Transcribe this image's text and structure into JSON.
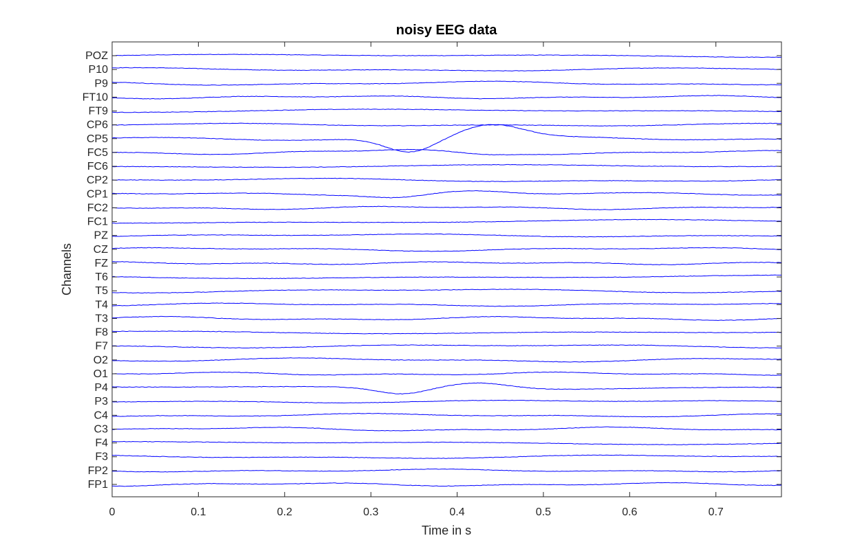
{
  "chart_data": {
    "type": "line",
    "title": "noisy EEG data",
    "xlabel": "Time in s",
    "ylabel": "Channels",
    "xlim": [
      0,
      0.776
    ],
    "xticks": [
      0,
      0.1,
      0.2,
      0.3,
      0.4,
      0.5,
      0.6,
      0.7
    ],
    "xtick_labels": [
      "0",
      "0.1",
      "0.2",
      "0.3",
      "0.4",
      "0.5",
      "0.6",
      "0.7"
    ],
    "channels_top_to_bottom": [
      "POZ",
      "P10",
      "P9",
      "FT10",
      "FT9",
      "CP6",
      "CP5",
      "FC5",
      "FC6",
      "CP2",
      "CP1",
      "FC2",
      "FC1",
      "PZ",
      "CZ",
      "FZ",
      "T6",
      "T5",
      "T4",
      "T3",
      "F8",
      "F7",
      "O2",
      "O1",
      "P4",
      "P3",
      "C4",
      "C3",
      "F4",
      "F3",
      "FP2",
      "FP1"
    ],
    "line_color": "#0000ff",
    "grid": false,
    "legend": false,
    "notable_events": [
      {
        "channel": "CP5",
        "trough_time": 0.345,
        "peak_time": 0.44,
        "amplitude_channels": 1.0
      },
      {
        "channel": "P4",
        "trough_time": 0.335,
        "peak_time": 0.425,
        "amplitude_channels": 0.45
      },
      {
        "channel": "CP1",
        "trough_time": 0.33,
        "peak_time": 0.42,
        "amplitude_channels": 0.2
      },
      {
        "channel": "FC5",
        "trough_time": 0.43,
        "peak_time": 0.34,
        "amplitude_channels": 0.15
      }
    ]
  }
}
